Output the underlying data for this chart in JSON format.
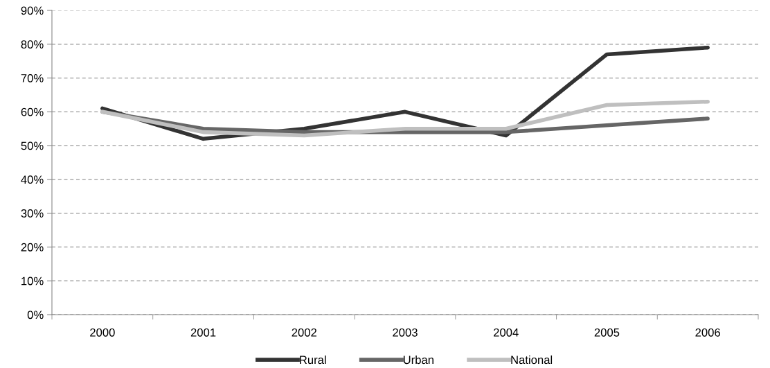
{
  "chart_data": {
    "type": "line",
    "categories": [
      "2000",
      "2001",
      "2002",
      "2003",
      "2004",
      "2005",
      "2006"
    ],
    "series": [
      {
        "name": "Rural",
        "color": "#333333",
        "values": [
          61,
          52,
          55,
          60,
          53,
          77,
          79
        ]
      },
      {
        "name": "Urban",
        "color": "#666666",
        "values": [
          60,
          55,
          54,
          54,
          54,
          56,
          58
        ]
      },
      {
        "name": "National",
        "color": "#bfbfbf",
        "values": [
          60,
          54,
          53,
          55,
          55,
          62,
          63
        ]
      }
    ],
    "ylim": [
      0,
      90
    ],
    "yticks": [
      {
        "value": 0,
        "label": "0%"
      },
      {
        "value": 10,
        "label": "10%"
      },
      {
        "value": 20,
        "label": "20%"
      },
      {
        "value": 30,
        "label": "30%"
      },
      {
        "value": 40,
        "label": "40%"
      },
      {
        "value": 50,
        "label": "50%"
      },
      {
        "value": 60,
        "label": "60%"
      },
      {
        "value": 70,
        "label": "70%"
      },
      {
        "value": 80,
        "label": "80%"
      },
      {
        "value": 90,
        "label": "90%"
      }
    ],
    "grid": "y",
    "legend": "bottom",
    "marker": "none",
    "line_style": "solid"
  }
}
